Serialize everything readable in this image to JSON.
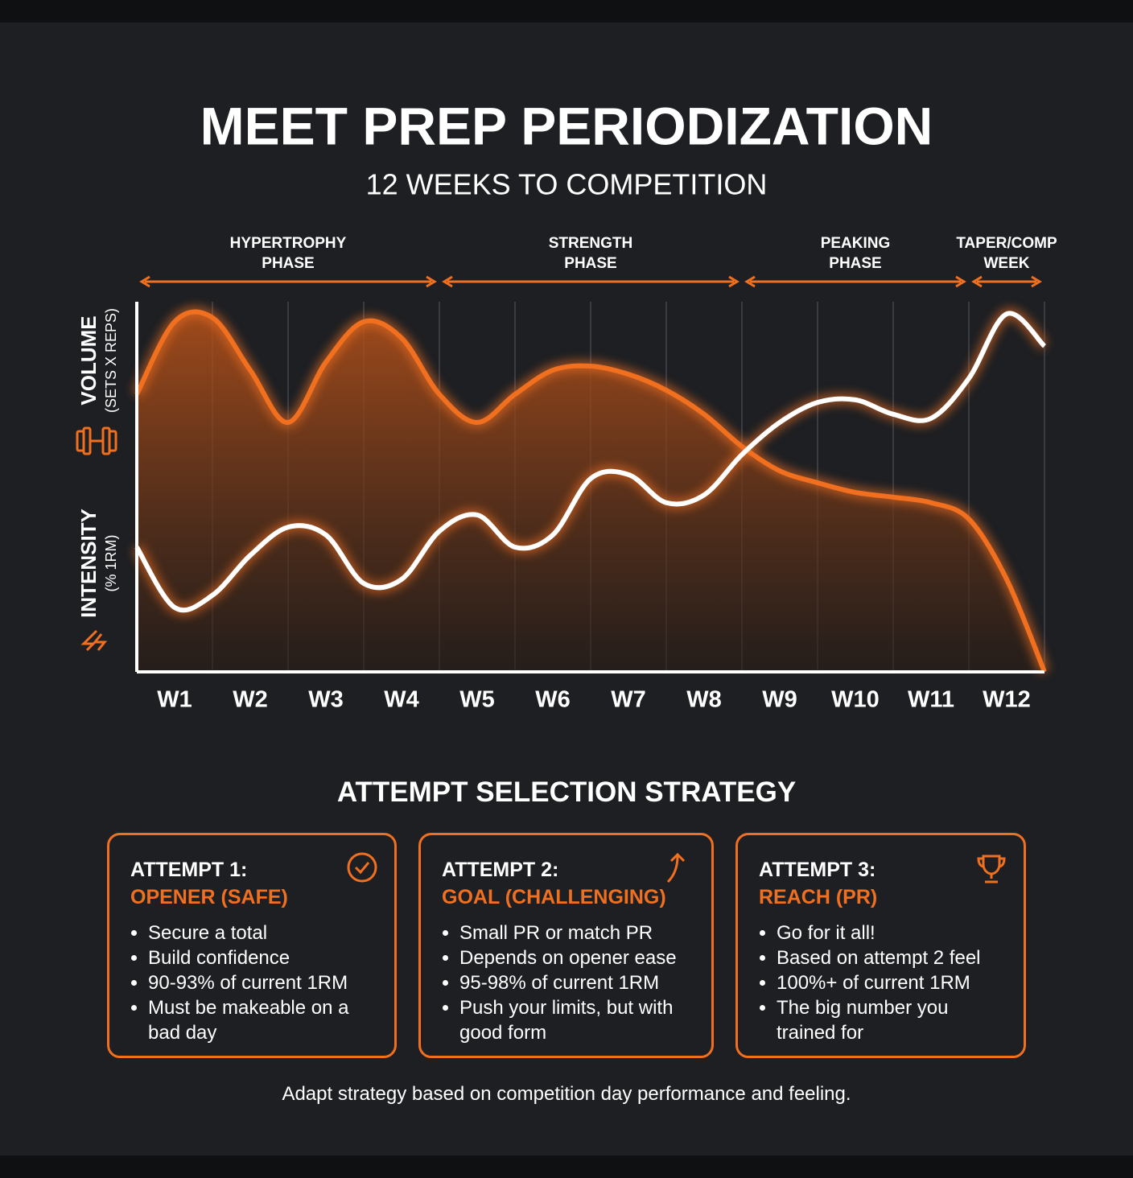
{
  "title": "MEET PREP PERIODIZATION",
  "subtitle": "12 WEEKS TO COMPETITION",
  "chart_data": {
    "type": "line",
    "phases": [
      {
        "lines": [
          "HYPERTROPHY",
          "PHASE"
        ],
        "weeks": [
          1,
          4
        ]
      },
      {
        "lines": [
          "STRENGTH",
          "PHASE"
        ],
        "weeks": [
          5,
          8
        ]
      },
      {
        "lines": [
          "PEAKING",
          "PHASE"
        ],
        "weeks": [
          9,
          11
        ]
      },
      {
        "lines": [
          "TAPER/COMP",
          "WEEK"
        ],
        "weeks": [
          12,
          12
        ]
      }
    ],
    "x": [
      0.5,
      1,
      1.5,
      2,
      2.5,
      3,
      3.5,
      4,
      4.5,
      5,
      5.5,
      6,
      6.5,
      7,
      7.5,
      8,
      8.5,
      9,
      9.5,
      10,
      10.5,
      11,
      11.5,
      12,
      12.5
    ],
    "xlim": [
      0.5,
      12.5
    ],
    "xticks": [
      {
        "value": 1,
        "label": "W1"
      },
      {
        "value": 2,
        "label": "W2"
      },
      {
        "value": 3,
        "label": "W3"
      },
      {
        "value": 4,
        "label": "W4"
      },
      {
        "value": 5,
        "label": "W5"
      },
      {
        "value": 6,
        "label": "W6"
      },
      {
        "value": 7,
        "label": "W7"
      },
      {
        "value": 8,
        "label": "W8"
      },
      {
        "value": 9,
        "label": "W9"
      },
      {
        "value": 10,
        "label": "W10"
      },
      {
        "value": 11,
        "label": "W11"
      },
      {
        "value": 12,
        "label": "W12"
      }
    ],
    "ylim": [
      0,
      100
    ],
    "grid": true,
    "series": [
      {
        "name": "VOLUME",
        "unit": "(SETS X REPS)",
        "color": "#f07020",
        "area": true,
        "values": [
          75,
          94.6,
          95.7,
          81.5,
          67.4,
          83.7,
          94.6,
          90.2,
          75,
          67.4,
          75,
          81.5,
          82.6,
          80.4,
          76.1,
          69.6,
          60.9,
          54.3,
          51.1,
          48.5,
          47.2,
          45.7,
          41.3,
          25,
          0
        ]
      },
      {
        "name": "INTENSITY",
        "unit": "(% 1RM)",
        "color": "#ffffff",
        "area": false,
        "values": [
          33.7,
          17.4,
          20.7,
          31.5,
          39.1,
          37,
          23.9,
          25,
          38,
          42.4,
          33.7,
          37,
          52.2,
          53.3,
          45.7,
          47.8,
          58.7,
          67.4,
          72.8,
          73.5,
          69.6,
          68.5,
          79.3,
          96.7,
          88
        ]
      }
    ]
  },
  "strategy": {
    "title": "ATTEMPT SELECTION STRATEGY",
    "cards": [
      {
        "heading": "ATTEMPT 1:",
        "subheading": "OPENER (SAFE)",
        "bullets": [
          "Secure a total",
          "Build confidence",
          "90-93% of current 1RM",
          "Must be makeable on a bad day"
        ]
      },
      {
        "heading": "ATTEMPT 2:",
        "subheading": "GOAL (CHALLENGING)",
        "bullets": [
          "Small PR or match PR",
          "Depends on opener ease",
          "95-98% of current 1RM",
          "Push your limits, but with good form"
        ]
      },
      {
        "heading": "ATTEMPT 3:",
        "subheading": "REACH (PR)",
        "bullets": [
          "Go for it all!",
          "Based on attempt 2 feel",
          "100%+ of current 1RM",
          "The big number you trained for"
        ]
      }
    ],
    "note": "Adapt strategy based on competition day performance and feeling."
  }
}
